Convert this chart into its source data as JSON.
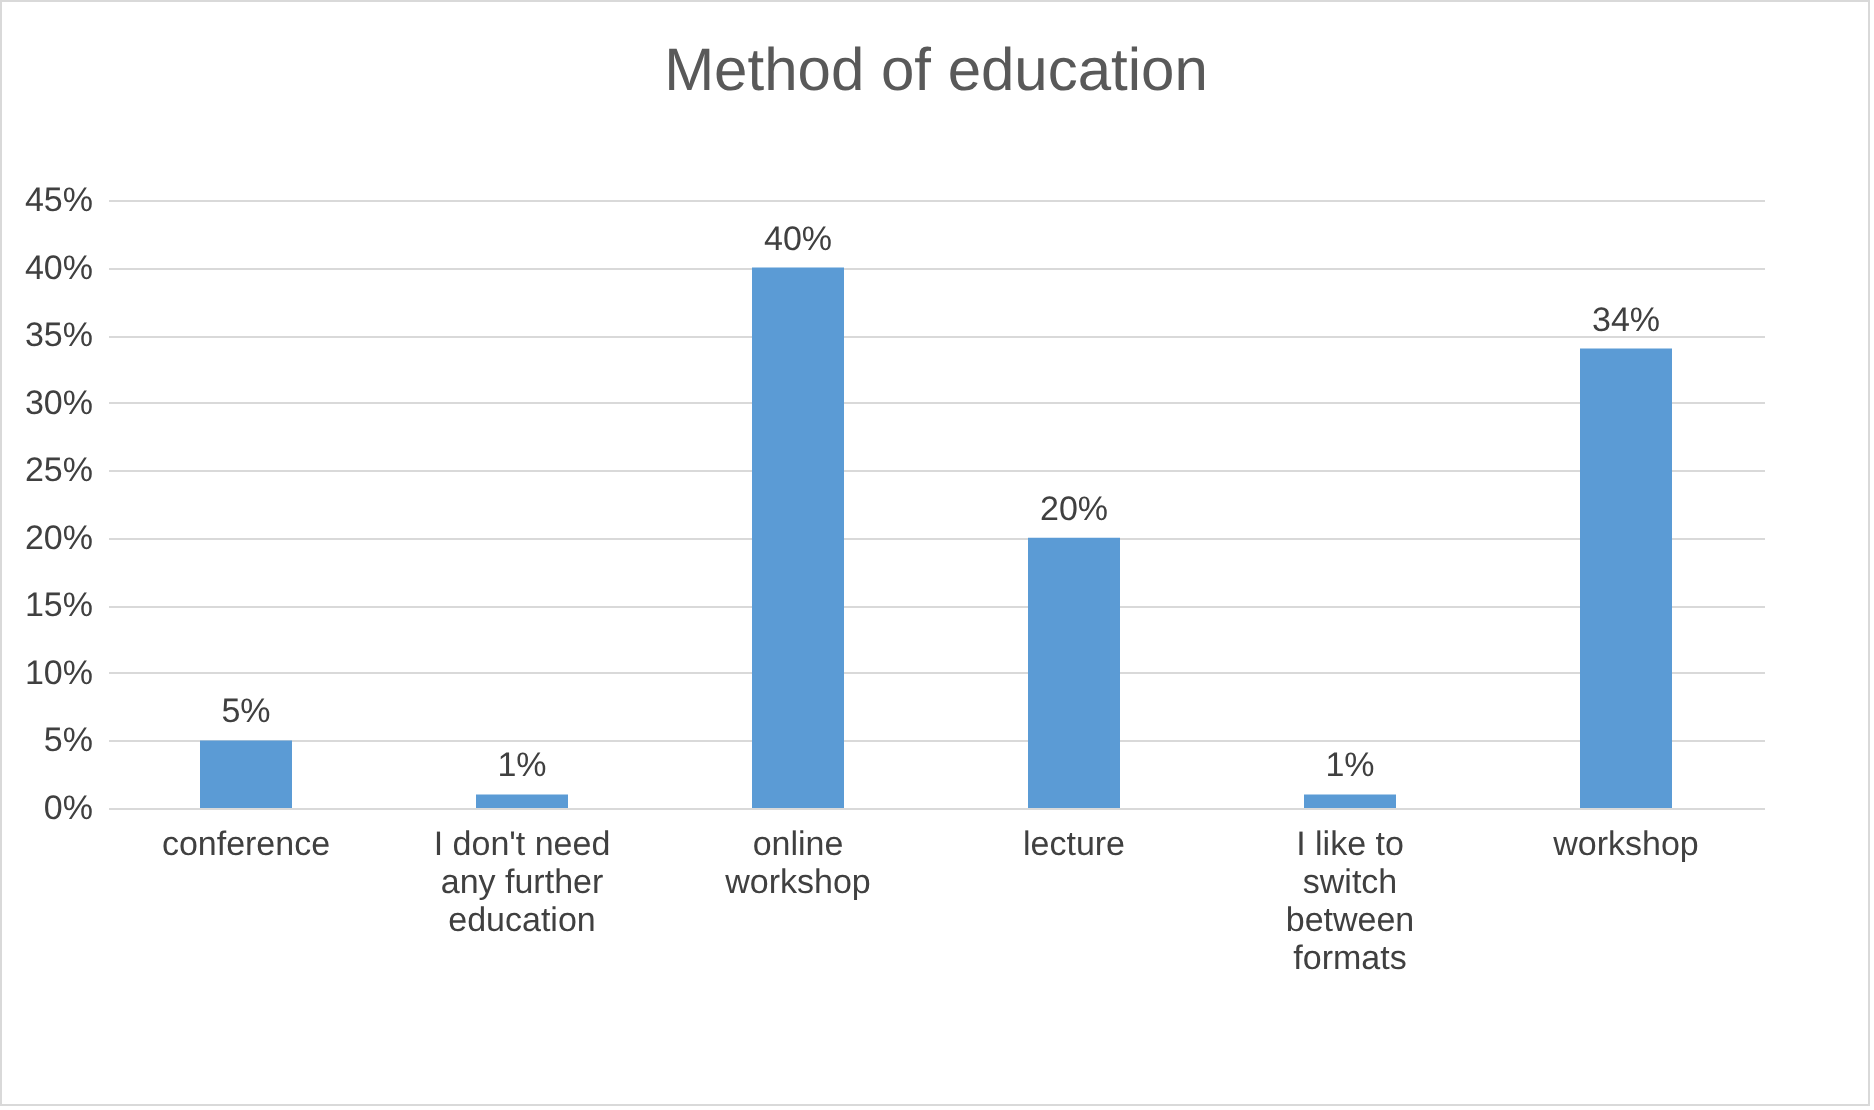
{
  "chart_data": {
    "type": "bar",
    "title": "Method of education",
    "categories": [
      "conference",
      "I don't need any further education",
      "online workshop",
      "lecture",
      "I like to switch between formats",
      "workshop"
    ],
    "values": [
      5,
      1,
      40,
      20,
      1,
      34
    ],
    "value_labels": [
      "5%",
      "1%",
      "40%",
      "20%",
      "1%",
      "34%"
    ],
    "color": "#5b9bd5",
    "ylim": [
      0,
      45
    ],
    "yticks": [
      {
        "value": 0,
        "label": "0%"
      },
      {
        "value": 5,
        "label": "5%"
      },
      {
        "value": 10,
        "label": "10%"
      },
      {
        "value": 15,
        "label": "15%"
      },
      {
        "value": 20,
        "label": "20%"
      },
      {
        "value": 25,
        "label": "25%"
      },
      {
        "value": 30,
        "label": "30%"
      },
      {
        "value": 35,
        "label": "35%"
      },
      {
        "value": 40,
        "label": "40%"
      },
      {
        "value": 45,
        "label": "45%"
      }
    ],
    "grid": "y"
  }
}
